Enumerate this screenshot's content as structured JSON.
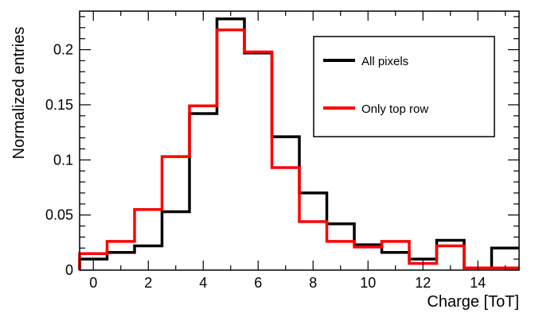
{
  "chart_data": {
    "type": "line",
    "style": "step-histogram",
    "xlabel": "Charge [ToT]",
    "ylabel": "Normalized entries",
    "xlim": [
      -0.5,
      15.5
    ],
    "ylim": [
      0,
      0.235
    ],
    "x_ticks": [
      0,
      2,
      4,
      6,
      8,
      10,
      12,
      14
    ],
    "x_tick_labels": [
      "0",
      "2",
      "4",
      "6",
      "8",
      "10",
      "12",
      "14"
    ],
    "y_ticks": [
      0,
      0.05,
      0.1,
      0.15,
      0.2
    ],
    "y_tick_labels": [
      "0",
      "0.05",
      "0.1",
      "0.15",
      "0.2"
    ],
    "grid": false,
    "legend_placement": "top-right",
    "bin_edges": [
      -0.5,
      0.5,
      1.5,
      2.5,
      3.5,
      4.5,
      5.5,
      6.5,
      7.5,
      8.5,
      9.5,
      10.5,
      11.5,
      12.5,
      13.5,
      14.5,
      15.5
    ],
    "series": [
      {
        "name": "All pixels",
        "color": "#000000",
        "values": [
          0.01,
          0.016,
          0.022,
          0.053,
          0.142,
          0.228,
          0.197,
          0.121,
          0.07,
          0.042,
          0.023,
          0.016,
          0.01,
          0.027,
          0.002,
          0.02
        ]
      },
      {
        "name": "Only top row",
        "color": "#ff0000",
        "values": [
          0.015,
          0.026,
          0.055,
          0.103,
          0.149,
          0.218,
          0.198,
          0.093,
          0.044,
          0.026,
          0.021,
          0.026,
          0.006,
          0.022,
          0.002,
          0.002
        ]
      }
    ]
  }
}
